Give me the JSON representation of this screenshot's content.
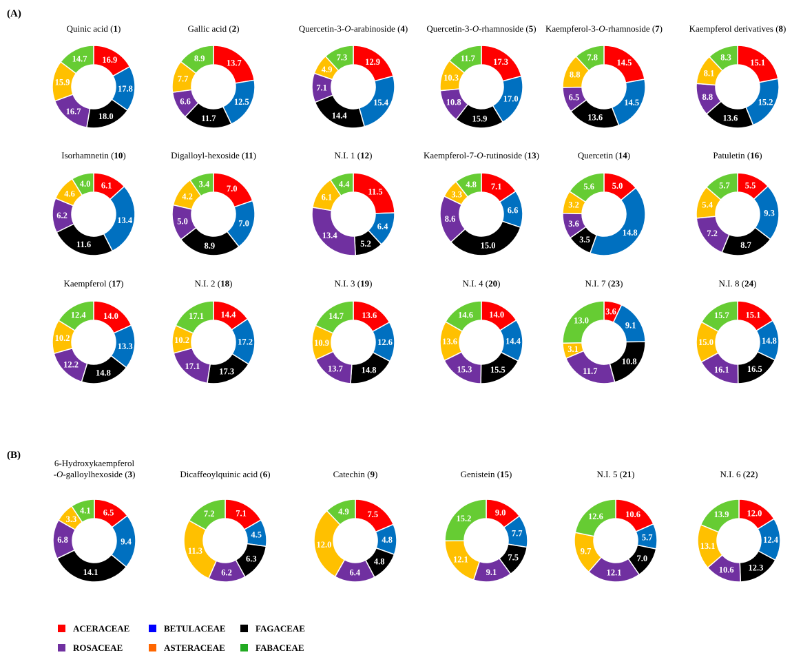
{
  "panels": [
    {
      "label": "(A)"
    },
    {
      "label": "(B)"
    }
  ],
  "chart_data": {
    "type": "donut",
    "legend_position": "bottom-left",
    "family_colors": {
      "ACERACEAE": "#ff0000",
      "BETULACEAE": "#0070c0",
      "FAGACEAE": "#000000",
      "ROSACEAE": "#7030a0",
      "ASTERACEAE": "#ffc000",
      "FABACEAE": "#66cc33"
    },
    "legend": [
      {
        "name": "ACERACEAE",
        "swatch": "#ff0000"
      },
      {
        "name": "BETULACEAE",
        "swatch": "#0000ff"
      },
      {
        "name": "FAGACEAE",
        "swatch": "#000000"
      },
      {
        "name": "ROSACEAE",
        "swatch": "#7030a0"
      },
      {
        "name": "ASTERACEAE",
        "swatch": "#ff6600"
      },
      {
        "name": "FABACEAE",
        "swatch": "#22aa22"
      }
    ],
    "slice_order": [
      "ACERACEAE",
      "BETULACEAE",
      "FAGACEAE",
      "ROSACEAE",
      "ASTERACEAE",
      "FABACEAE"
    ],
    "charts": [
      {
        "panel": "A",
        "title": [
          {
            "t": "Quinic acid ("
          },
          {
            "t": "1",
            "s": "b"
          },
          {
            "t": ")"
          }
        ],
        "values": [
          16.9,
          17.8,
          18.0,
          16.7,
          15.9,
          14.7
        ]
      },
      {
        "panel": "A",
        "title": [
          {
            "t": "Gallic acid ("
          },
          {
            "t": "2",
            "s": "b"
          },
          {
            "t": ")"
          }
        ],
        "values": [
          13.7,
          12.5,
          11.7,
          6.6,
          7.7,
          8.9
        ]
      },
      {
        "panel": "A",
        "title": [
          {
            "t": "Quercetin-3-"
          },
          {
            "t": "O",
            "s": "i"
          },
          {
            "t": "-arabinoside ("
          },
          {
            "t": "4",
            "s": "b"
          },
          {
            "t": ")"
          }
        ],
        "values": [
          12.9,
          15.4,
          14.4,
          7.1,
          4.9,
          7.3
        ]
      },
      {
        "panel": "A",
        "title": [
          {
            "t": "Quercetin-3-"
          },
          {
            "t": "O",
            "s": "i"
          },
          {
            "t": "-rhamnoside ("
          },
          {
            "t": "5",
            "s": "b"
          },
          {
            "t": ")"
          }
        ],
        "values": [
          17.3,
          17.0,
          15.9,
          10.8,
          10.3,
          11.7
        ]
      },
      {
        "panel": "A",
        "title": [
          {
            "t": "Kaempferol-3-"
          },
          {
            "t": "O",
            "s": "i"
          },
          {
            "t": "-rhamnoside ("
          },
          {
            "t": "7",
            "s": "b"
          },
          {
            "t": ")"
          }
        ],
        "values": [
          14.5,
          14.5,
          13.6,
          6.5,
          8.8,
          7.8
        ]
      },
      {
        "panel": "A",
        "title": [
          {
            "t": "Kaempferol derivatives ("
          },
          {
            "t": "8",
            "s": "b"
          },
          {
            "t": ")"
          }
        ],
        "values": [
          15.1,
          15.2,
          13.6,
          8.8,
          8.1,
          8.3
        ]
      },
      {
        "panel": "A",
        "title": [
          {
            "t": "Isorhamnetin ("
          },
          {
            "t": "10",
            "s": "b"
          },
          {
            "t": ")"
          }
        ],
        "values": [
          6.1,
          13.4,
          11.6,
          6.2,
          4.6,
          4.0
        ]
      },
      {
        "panel": "A",
        "title": [
          {
            "t": "Digalloyl-hexoside ("
          },
          {
            "t": "11",
            "s": "b"
          },
          {
            "t": ")"
          }
        ],
        "values": [
          7.0,
          7.0,
          8.9,
          5.0,
          4.2,
          3.4
        ]
      },
      {
        "panel": "A",
        "title": [
          {
            "t": "N.I. 1 ("
          },
          {
            "t": "12",
            "s": "b"
          },
          {
            "t": ")"
          }
        ],
        "values": [
          11.5,
          6.4,
          5.2,
          13.4,
          6.1,
          4.4
        ]
      },
      {
        "panel": "A",
        "title": [
          {
            "t": "Kaempferol-7-"
          },
          {
            "t": "O",
            "s": "i"
          },
          {
            "t": "-rutinoside ("
          },
          {
            "t": "13",
            "s": "b"
          },
          {
            "t": ")"
          }
        ],
        "values": [
          7.1,
          6.6,
          15.0,
          8.6,
          3.3,
          4.8
        ]
      },
      {
        "panel": "A",
        "title": [
          {
            "t": "Quercetin ("
          },
          {
            "t": "14",
            "s": "b"
          },
          {
            "t": ")"
          }
        ],
        "values": [
          5.0,
          14.8,
          3.5,
          3.6,
          3.2,
          5.6
        ]
      },
      {
        "panel": "A",
        "title": [
          {
            "t": "Patuletin ("
          },
          {
            "t": "16",
            "s": "b"
          },
          {
            "t": ")"
          }
        ],
        "values": [
          5.5,
          9.3,
          8.7,
          7.2,
          5.4,
          5.7
        ]
      },
      {
        "panel": "A",
        "title": [
          {
            "t": "Kaempferol ("
          },
          {
            "t": "17",
            "s": "b"
          },
          {
            "t": ")"
          }
        ],
        "values": [
          14.0,
          13.3,
          14.8,
          12.2,
          10.2,
          12.4
        ]
      },
      {
        "panel": "A",
        "title": [
          {
            "t": "N.I. 2 ("
          },
          {
            "t": "18",
            "s": "b"
          },
          {
            "t": ")"
          }
        ],
        "values": [
          14.4,
          17.2,
          17.3,
          17.1,
          10.2,
          17.1
        ]
      },
      {
        "panel": "A",
        "title": [
          {
            "t": "N.I. 3 ("
          },
          {
            "t": "19",
            "s": "b"
          },
          {
            "t": ")"
          }
        ],
        "values": [
          13.6,
          12.6,
          14.8,
          13.7,
          10.9,
          14.7
        ]
      },
      {
        "panel": "A",
        "title": [
          {
            "t": "N.I. 4 ("
          },
          {
            "t": "20",
            "s": "b"
          },
          {
            "t": ")"
          }
        ],
        "values": [
          14.0,
          14.4,
          15.5,
          15.3,
          13.6,
          14.6
        ]
      },
      {
        "panel": "A",
        "title": [
          {
            "t": "N.I. 7 ("
          },
          {
            "t": "23",
            "s": "b"
          },
          {
            "t": ")"
          }
        ],
        "values": [
          3.6,
          9.1,
          10.8,
          11.7,
          3.1,
          13.0
        ]
      },
      {
        "panel": "A",
        "title": [
          {
            "t": "N.I. 8 ("
          },
          {
            "t": "24",
            "s": "b"
          },
          {
            "t": ")"
          }
        ],
        "values": [
          15.1,
          14.8,
          16.5,
          16.1,
          15.0,
          15.7
        ]
      },
      {
        "panel": "B",
        "title": [
          {
            "t": "6-Hydroxykaempferol"
          },
          {
            "t": "\n"
          },
          {
            "t": "-"
          },
          {
            "t": "O",
            "s": "i"
          },
          {
            "t": "-galloylhexoside ("
          },
          {
            "t": "3",
            "s": "b"
          },
          {
            "t": ")"
          }
        ],
        "values": [
          6.5,
          9.4,
          14.1,
          6.8,
          3.3,
          4.1
        ]
      },
      {
        "panel": "B",
        "title": [
          {
            "t": "Dicaffeoylquinic acid ("
          },
          {
            "t": "6",
            "s": "b"
          },
          {
            "t": ")"
          }
        ],
        "values": [
          7.1,
          4.5,
          6.3,
          6.2,
          11.3,
          7.2
        ]
      },
      {
        "panel": "B",
        "title": [
          {
            "t": "Catechin ("
          },
          {
            "t": "9",
            "s": "b"
          },
          {
            "t": ")"
          }
        ],
        "values": [
          7.5,
          4.8,
          4.8,
          6.4,
          12.0,
          4.9
        ]
      },
      {
        "panel": "B",
        "title": [
          {
            "t": "Genistein ("
          },
          {
            "t": "15",
            "s": "b"
          },
          {
            "t": ")"
          }
        ],
        "values": [
          9.0,
          7.7,
          7.5,
          9.1,
          12.1,
          15.2
        ]
      },
      {
        "panel": "B",
        "title": [
          {
            "t": "N.I. 5 ("
          },
          {
            "t": "21",
            "s": "b"
          },
          {
            "t": ")"
          }
        ],
        "values": [
          10.6,
          5.7,
          7.0,
          12.1,
          9.7,
          12.6
        ]
      },
      {
        "panel": "B",
        "title": [
          {
            "t": "N.I. 6 ("
          },
          {
            "t": "22",
            "s": "b"
          },
          {
            "t": ")"
          }
        ],
        "values": [
          12.0,
          12.4,
          12.3,
          10.6,
          13.1,
          13.9
        ]
      }
    ]
  }
}
